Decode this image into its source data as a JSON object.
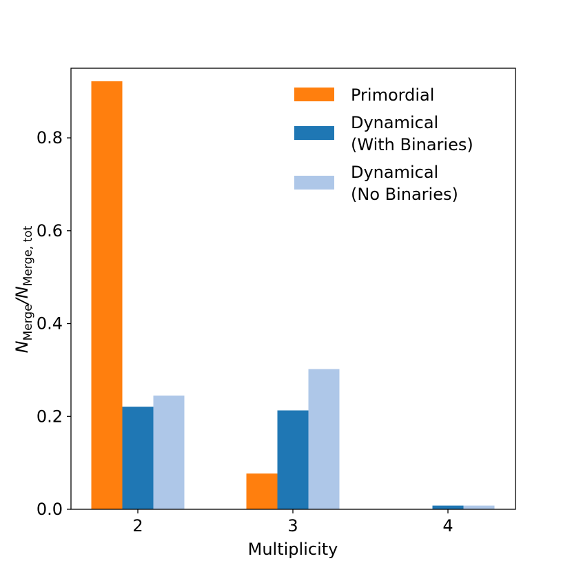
{
  "chart_data": {
    "type": "bar",
    "title": "",
    "xlabel": "Multiplicity",
    "ylabel_main": "N",
    "ylabel_sub_main": "Merge",
    "ylabel_mid": "/N",
    "ylabel_sub_total": "Merge, tot",
    "categories": [
      "2",
      "3",
      "4"
    ],
    "ylim": [
      0,
      0.95
    ],
    "yticks": [
      0.0,
      0.2,
      0.4,
      0.6,
      0.8
    ],
    "ytick_labels": [
      "0.0",
      "0.2",
      "0.4",
      "0.6",
      "0.8"
    ],
    "legend_position": "top-right",
    "series": [
      {
        "name": "Primordial",
        "label_lines": [
          "Primordial"
        ],
        "color": "#ff7f0e",
        "values": [
          0.922,
          0.077,
          0.0
        ]
      },
      {
        "name": "Dynamical (With Binaries)",
        "label_lines": [
          "Dynamical",
          "(With Binaries)"
        ],
        "color": "#1f77b4",
        "values": [
          0.221,
          0.213,
          0.008
        ]
      },
      {
        "name": "Dynamical (No Binaries)",
        "label_lines": [
          "Dynamical",
          "(No Binaries)"
        ],
        "color": "#aec7e8",
        "values": [
          0.245,
          0.302,
          0.008
        ]
      }
    ]
  }
}
